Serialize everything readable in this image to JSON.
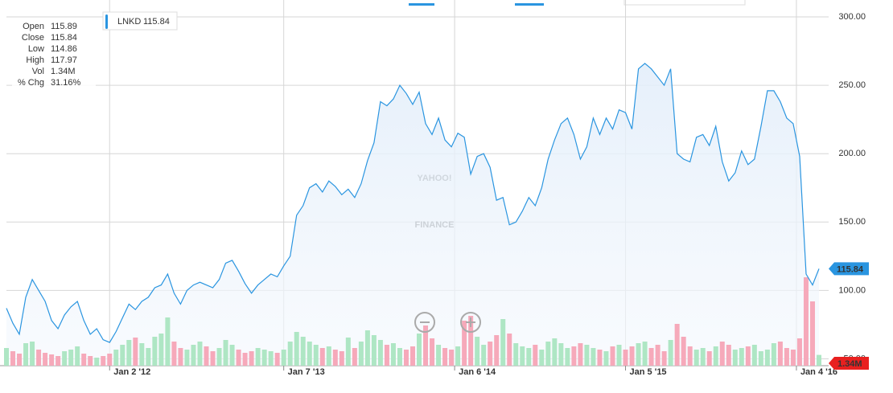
{
  "chart_data": {
    "type": "line",
    "watermark": [
      "YAHOO!",
      "FINANCE"
    ],
    "info": [
      {
        "label": "Open",
        "value": "115.89"
      },
      {
        "label": "Close",
        "value": "115.84"
      },
      {
        "label": "Low",
        "value": "114.86"
      },
      {
        "label": "High",
        "value": "117.97"
      },
      {
        "label": "Vol",
        "value": "1.34M"
      },
      {
        "label": "% Chg",
        "value": "31.16%"
      }
    ],
    "xlim": [
      0,
      126
    ],
    "xticks": [
      {
        "value": 16,
        "label": "Jan 2 '12"
      },
      {
        "value": 43,
        "label": "Jan 7 '13"
      },
      {
        "value": 69.5,
        "label": "Jan 6 '14"
      },
      {
        "value": 96,
        "label": "Jan 5 '15"
      },
      {
        "value": 122.5,
        "label": "Jan 4 '16"
      }
    ],
    "ylim": [
      45,
      300
    ],
    "yticks": [
      {
        "value": 50,
        "label": "50.00"
      },
      {
        "value": 100,
        "label": "100.00"
      },
      {
        "value": 150,
        "label": "150.00"
      },
      {
        "value": 200,
        "label": "200.00"
      },
      {
        "value": 250,
        "label": "250.00"
      },
      {
        "value": 300,
        "label": "300.00"
      }
    ],
    "y2lim": [
      0,
      15
    ],
    "grid": true,
    "series": [
      {
        "name": "LNKD",
        "color": "#2a95e0",
        "values": [
          87,
          76,
          68,
          95,
          108,
          100,
          92,
          78,
          72,
          82,
          88,
          92,
          78,
          68,
          72,
          64,
          62,
          70,
          80,
          90,
          86,
          92,
          95,
          102,
          104,
          112,
          98,
          90,
          100,
          104,
          106,
          104,
          102,
          108,
          120,
          122,
          114,
          105,
          98,
          104,
          108,
          112,
          110,
          118,
          125,
          155,
          162,
          175,
          178,
          172,
          180,
          176,
          170,
          174,
          168,
          178,
          195,
          208,
          238,
          235,
          240,
          250,
          244,
          236,
          245,
          222,
          214,
          226,
          210,
          205,
          215,
          212,
          185,
          198,
          200,
          190,
          166,
          168,
          148,
          150,
          158,
          168,
          162,
          175,
          196,
          210,
          222,
          226,
          214,
          196,
          205,
          226,
          214,
          226,
          218,
          232,
          230,
          218,
          262,
          266,
          262,
          256,
          250,
          262,
          200,
          196,
          194,
          212,
          214,
          206,
          220,
          194,
          180,
          186,
          202,
          192,
          196,
          220,
          246,
          246,
          238,
          226,
          222,
          198,
          112,
          104,
          115.84
        ]
      },
      {
        "name": "Volume",
        "axis": "y2",
        "up_color": "#aee6c4",
        "down_color": "#f6a9ba",
        "values": [
          2.2,
          1.8,
          1.5,
          2.8,
          3.0,
          2.0,
          1.6,
          1.4,
          1.2,
          1.8,
          2.0,
          2.4,
          1.5,
          1.2,
          1.0,
          1.2,
          1.5,
          2.0,
          2.6,
          3.2,
          3.5,
          2.8,
          2.2,
          3.6,
          4.0,
          6.0,
          3.0,
          2.2,
          2.0,
          2.6,
          3.0,
          2.4,
          1.8,
          2.2,
          3.2,
          2.6,
          2.0,
          1.6,
          1.8,
          2.2,
          2.0,
          1.8,
          1.6,
          2.0,
          3.0,
          4.2,
          3.6,
          3.0,
          2.6,
          2.2,
          2.4,
          2.0,
          1.8,
          3.5,
          2.2,
          3.0,
          4.4,
          3.8,
          3.2,
          2.6,
          2.8,
          2.2,
          2.0,
          2.4,
          4.0,
          5.0,
          3.4,
          2.6,
          2.2,
          2.0,
          2.4,
          5.6,
          6.2,
          3.6,
          2.6,
          3.0,
          3.8,
          5.8,
          4.0,
          2.8,
          2.4,
          2.2,
          2.6,
          2.0,
          3.0,
          3.4,
          2.8,
          2.2,
          2.4,
          2.8,
          2.6,
          2.2,
          2.0,
          1.8,
          2.4,
          2.6,
          2.0,
          2.4,
          2.8,
          3.0,
          2.2,
          2.6,
          1.8,
          3.2,
          5.2,
          3.6,
          2.4,
          2.0,
          2.2,
          1.8,
          2.4,
          3.0,
          2.6,
          2.0,
          2.2,
          2.4,
          2.6,
          1.8,
          2.0,
          2.8,
          3.0,
          2.2,
          2.0,
          3.4,
          11.0,
          8.0,
          1.34
        ]
      }
    ]
  }
}
